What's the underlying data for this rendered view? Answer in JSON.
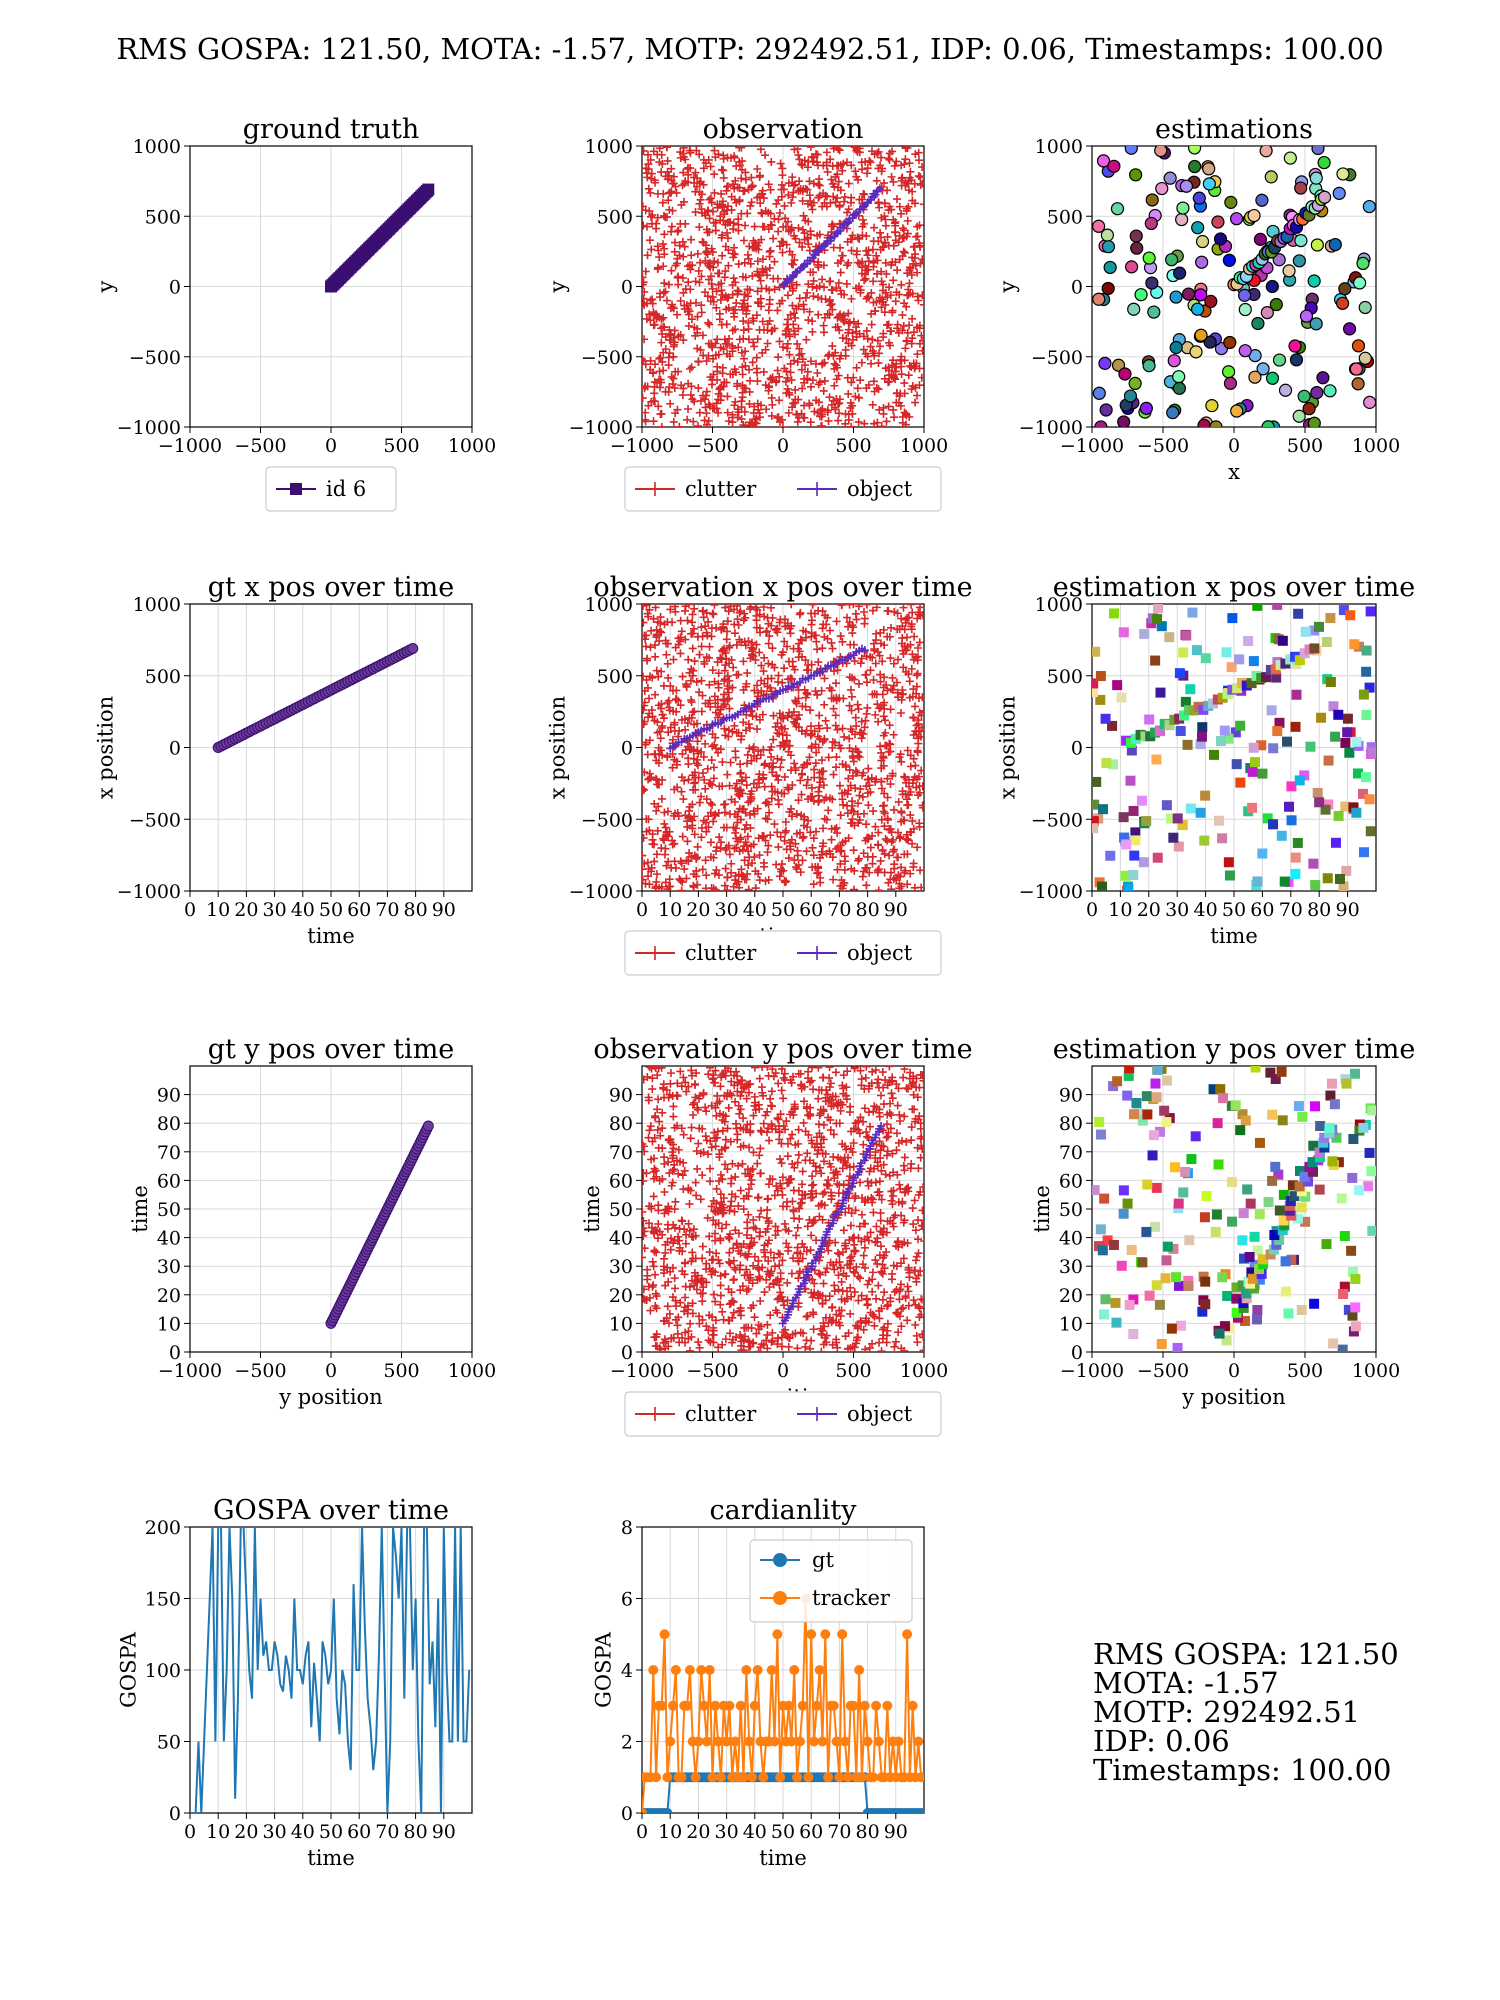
{
  "suptitle": "RMS GOSPA: 121.50, MOTA: -1.57, MOTP: 292492.51, IDP: 0.06, Timestamps: 100.00",
  "summary": [
    "RMS GOSPA: 121.50",
    "MOTA: -1.57",
    "MOTP: 292492.51",
    "IDP: 0.06",
    "Timestamps: 100.00"
  ],
  "colors": {
    "gt_track": "#3b0f70",
    "clutter": "#d62728",
    "object": "#5b2bbd",
    "gospa": "#1f77b4",
    "card_gt": "#1f77b4",
    "card_tracker": "#ff7f0e"
  },
  "chart_data": [
    {
      "id": "gt",
      "type": "scatter",
      "title": "ground truth",
      "xlabel": "x",
      "ylabel": "y",
      "xlim": [
        -1000,
        1000
      ],
      "ylim": [
        -1000,
        1000
      ],
      "xticks": [
        "−1000",
        "−500",
        "0",
        "500",
        "1000"
      ],
      "yticks": [
        "−1000",
        "−500",
        "0",
        "500",
        "1000"
      ],
      "grid": true,
      "legend": {
        "placement": "below",
        "entries": [
          "id 6"
        ]
      },
      "series": [
        {
          "name": "id 6",
          "x_range": [
            0,
            690
          ],
          "y_range": [
            0,
            690
          ],
          "marker": "square",
          "color": "#3b0f70"
        }
      ]
    },
    {
      "id": "obs",
      "type": "scatter",
      "title": "observation",
      "xlabel": "x",
      "ylabel": "y",
      "xlim": [
        -1000,
        1000
      ],
      "ylim": [
        -1000,
        1000
      ],
      "xticks": [
        "−1000",
        "−500",
        "0",
        "500",
        "1000"
      ],
      "yticks": [
        "−1000",
        "−500",
        "0",
        "500",
        "1000"
      ],
      "grid": true,
      "legend": {
        "placement": "below",
        "entries": [
          "clutter",
          "object"
        ]
      },
      "series": [
        {
          "name": "clutter",
          "marker": "plus",
          "color": "#d62728",
          "approx_points": 1500
        },
        {
          "name": "object",
          "x_range": [
            0,
            690
          ],
          "y_range": [
            0,
            690
          ],
          "marker": "plus",
          "color": "#5b2bbd"
        }
      ]
    },
    {
      "id": "est",
      "type": "scatter",
      "title": "estimations",
      "xlabel": "x",
      "ylabel": "y",
      "xlim": [
        -1000,
        1000
      ],
      "ylim": [
        -1000,
        1000
      ],
      "xticks": [
        "−1000",
        "−500",
        "0",
        "500",
        "1000"
      ],
      "yticks": [
        "−1000",
        "−500",
        "0",
        "500",
        "1000"
      ],
      "grid": true,
      "marker": "circle",
      "approx_points": 230
    },
    {
      "id": "gtx",
      "type": "scatter",
      "title": "gt x pos over time",
      "xlabel": "time",
      "ylabel": "x position",
      "xlim": [
        0,
        100
      ],
      "ylim": [
        -1000,
        1000
      ],
      "xticks": [
        "0",
        "10",
        "20",
        "30",
        "40",
        "50",
        "60",
        "70",
        "80",
        "90"
      ],
      "yticks": [
        "−1000",
        "−500",
        "0",
        "500",
        "1000"
      ],
      "grid": true,
      "series": [
        {
          "x_range": [
            10,
            79
          ],
          "y_range": [
            0,
            690
          ],
          "color": "#3b0f70"
        }
      ]
    },
    {
      "id": "obsx",
      "type": "scatter",
      "title": "observation x pos over time",
      "xlabel": "time",
      "ylabel": "x position",
      "xlim": [
        0,
        100
      ],
      "ylim": [
        -1000,
        1000
      ],
      "xticks": [
        "0",
        "10",
        "20",
        "30",
        "40",
        "50",
        "60",
        "70",
        "80",
        "90"
      ],
      "yticks": [
        "−1000",
        "−500",
        "0",
        "500",
        "1000"
      ],
      "grid": true,
      "legend": {
        "placement": "below",
        "entries": [
          "clutter",
          "object"
        ]
      },
      "series": [
        {
          "name": "clutter",
          "color": "#d62728",
          "approx_points": 1500
        },
        {
          "name": "object",
          "x_range": [
            10,
            79
          ],
          "y_range": [
            0,
            690
          ],
          "color": "#5b2bbd"
        }
      ]
    },
    {
      "id": "estx",
      "type": "scatter",
      "title": "estimation x pos over time",
      "xlabel": "time",
      "ylabel": "x position",
      "xlim": [
        0,
        100
      ],
      "ylim": [
        -1000,
        1000
      ],
      "xticks": [
        "0",
        "10",
        "20",
        "30",
        "40",
        "50",
        "60",
        "70",
        "80",
        "90"
      ],
      "yticks": [
        "−1000",
        "−500",
        "0",
        "500",
        "1000"
      ],
      "grid": true,
      "marker": "square",
      "approx_points": 230
    },
    {
      "id": "gty",
      "type": "scatter",
      "title": "gt y pos over time",
      "xlabel": "y position",
      "ylabel": "time",
      "xlim": [
        -1000,
        1000
      ],
      "ylim": [
        0,
        100
      ],
      "xticks": [
        "−1000",
        "−500",
        "0",
        "500",
        "1000"
      ],
      "yticks": [
        "0",
        "10",
        "20",
        "30",
        "40",
        "50",
        "60",
        "70",
        "80",
        "90"
      ],
      "grid": true,
      "series": [
        {
          "x_range": [
            0,
            690
          ],
          "y_range": [
            10,
            79
          ],
          "color": "#3b0f70"
        }
      ]
    },
    {
      "id": "obsy",
      "type": "scatter",
      "title": "observation y pos over time",
      "xlabel": "y position",
      "ylabel": "time",
      "xlim": [
        -1000,
        1000
      ],
      "ylim": [
        0,
        100
      ],
      "xticks": [
        "−1000",
        "−500",
        "0",
        "500",
        "1000"
      ],
      "yticks": [
        "0",
        "10",
        "20",
        "30",
        "40",
        "50",
        "60",
        "70",
        "80",
        "90"
      ],
      "grid": true,
      "legend": {
        "placement": "below",
        "entries": [
          "clutter",
          "object"
        ]
      },
      "series": [
        {
          "name": "clutter",
          "color": "#d62728",
          "approx_points": 1500
        },
        {
          "name": "object",
          "x_range": [
            0,
            690
          ],
          "y_range": [
            10,
            79
          ],
          "color": "#5b2bbd"
        }
      ]
    },
    {
      "id": "esty",
      "type": "scatter",
      "title": "estimation y pos over time",
      "xlabel": "y position",
      "ylabel": "time",
      "xlim": [
        -1000,
        1000
      ],
      "ylim": [
        0,
        100
      ],
      "xticks": [
        "−1000",
        "−500",
        "0",
        "500",
        "1000"
      ],
      "yticks": [
        "0",
        "10",
        "20",
        "30",
        "40",
        "50",
        "60",
        "70",
        "80",
        "90"
      ],
      "grid": true,
      "marker": "square",
      "approx_points": 230
    },
    {
      "id": "gospa",
      "type": "line",
      "title": "GOSPA over time",
      "xlabel": "time",
      "ylabel": "GOSPA",
      "xlim": [
        0,
        100
      ],
      "ylim": [
        0,
        200
      ],
      "xticks": [
        "0",
        "10",
        "20",
        "30",
        "40",
        "50",
        "60",
        "70",
        "80",
        "90"
      ],
      "yticks": [
        "0",
        "50",
        "100",
        "150",
        "200"
      ],
      "grid": true,
      "series": [
        {
          "color": "#1f77b4",
          "values": [
            0,
            0,
            0,
            50,
            0,
            50,
            100,
            150,
            200,
            50,
            200,
            200,
            50,
            100,
            200,
            150,
            10,
            80,
            200,
            200,
            150,
            100,
            80,
            200,
            100,
            150,
            110,
            120,
            100,
            100,
            120,
            110,
            90,
            85,
            110,
            100,
            80,
            150,
            100,
            100,
            90,
            110,
            120,
            60,
            105,
            80,
            50,
            120,
            110,
            90,
            100,
            150,
            80,
            55,
            100,
            90,
            50,
            30,
            160,
            100,
            100,
            200,
            130,
            80,
            60,
            30,
            50,
            110,
            200,
            100,
            0,
            50,
            200,
            180,
            150,
            200,
            80,
            200,
            200,
            100,
            150,
            50,
            0,
            200,
            200,
            90,
            120,
            60,
            150,
            0,
            200,
            100,
            50,
            50,
            200,
            50,
            200,
            50,
            50,
            100
          ]
        }
      ]
    },
    {
      "id": "card",
      "type": "line",
      "title": "cardianlity",
      "xlabel": "time",
      "ylabel": "GOSPA",
      "xlim": [
        0,
        100
      ],
      "ylim": [
        0,
        8
      ],
      "xticks": [
        "0",
        "10",
        "20",
        "30",
        "40",
        "50",
        "60",
        "70",
        "80",
        "90"
      ],
      "yticks": [
        "0",
        "2",
        "4",
        "6",
        "8"
      ],
      "grid": true,
      "legend": {
        "placement": "upper-center",
        "entries": [
          "gt",
          "tracker"
        ]
      },
      "series": [
        {
          "name": "gt",
          "color": "#1f77b4",
          "values": [
            0,
            0,
            0,
            0,
            0,
            0,
            0,
            0,
            0,
            0,
            1,
            1,
            1,
            1,
            1,
            1,
            1,
            1,
            1,
            1,
            1,
            1,
            1,
            1,
            1,
            1,
            1,
            1,
            1,
            1,
            1,
            1,
            1,
            1,
            1,
            1,
            1,
            1,
            1,
            1,
            1,
            1,
            1,
            1,
            1,
            1,
            1,
            1,
            1,
            1,
            1,
            1,
            1,
            1,
            1,
            1,
            1,
            1,
            1,
            1,
            1,
            1,
            1,
            1,
            1,
            1,
            1,
            1,
            1,
            1,
            1,
            1,
            1,
            1,
            1,
            1,
            1,
            1,
            1,
            1,
            0,
            0,
            0,
            0,
            0,
            0,
            0,
            0,
            0,
            0,
            0,
            0,
            0,
            0,
            0,
            0,
            0,
            0,
            0,
            0
          ]
        },
        {
          "name": "tracker",
          "color": "#ff7f0e",
          "values": [
            0,
            1,
            1,
            1,
            4,
            1,
            3,
            3,
            5,
            1,
            2,
            3,
            4,
            1,
            1,
            3,
            3,
            4,
            2,
            1,
            2,
            4,
            3,
            2,
            4,
            1,
            3,
            2,
            1,
            3,
            2,
            3,
            1,
            2,
            1,
            3,
            1,
            4,
            2,
            1,
            3,
            4,
            2,
            1,
            2,
            2,
            4,
            2,
            5,
            1,
            3,
            2,
            3,
            2,
            4,
            1,
            2,
            3,
            6,
            1,
            5,
            2,
            3,
            4,
            2,
            5,
            1,
            3,
            3,
            2,
            1,
            5,
            2,
            1,
            3,
            3,
            1,
            4,
            1,
            3,
            2,
            1,
            1,
            3,
            2,
            1,
            1,
            3,
            1,
            2,
            1,
            2,
            1,
            1,
            5,
            1,
            3,
            1,
            2,
            1
          ]
        }
      ]
    }
  ]
}
